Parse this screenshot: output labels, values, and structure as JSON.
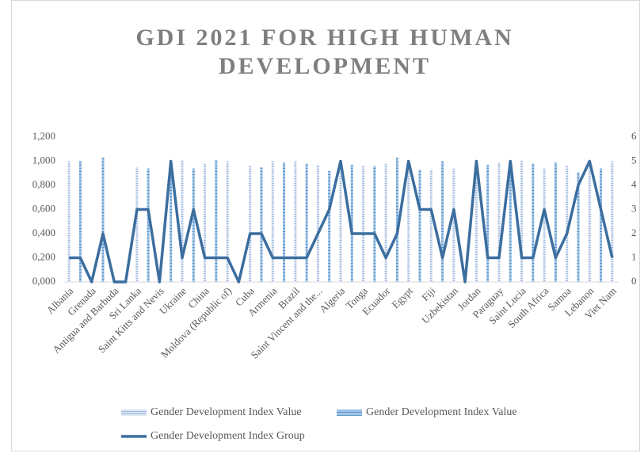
{
  "chart_data": {
    "type": "combo",
    "title": "GDI 2021 FOR HIGH HUMAN DEVELOPMENT",
    "categories": [
      "Albania",
      null,
      "Grenada",
      null,
      "Antigua and Barbuda",
      null,
      "Sri Lanka",
      null,
      "Saint Kitts and Nevis",
      null,
      "Ukraine",
      null,
      "China",
      null,
      "Moldova (Republic of)",
      null,
      "Cuba",
      null,
      "Armenia",
      null,
      "Brazil",
      null,
      "Saint Vincent and the...",
      null,
      "Algeria",
      null,
      "Tonga",
      null,
      "Ecuador",
      null,
      "Egypt",
      null,
      "Fiji",
      null,
      "Uzbekistan",
      null,
      "Jordan",
      null,
      "Paraguay",
      null,
      "Saint Lucia",
      null,
      "South Africa",
      null,
      "Samoa",
      null,
      "Lebanon",
      null,
      "Viet Nam"
    ],
    "series": [
      {
        "name": "Gender Development Index Value",
        "type": "bar",
        "color": "#b4c7e7",
        "values": [
          1.0,
          null,
          null,
          null,
          null,
          null,
          0.95,
          null,
          null,
          null,
          1.01,
          null,
          0.98,
          null,
          1.0,
          null,
          0.96,
          null,
          1.0,
          null,
          1.0,
          null,
          0.97,
          null,
          1.0,
          null,
          0.96,
          null,
          0.98,
          null,
          1.0,
          null,
          0.93,
          null,
          0.94,
          null,
          1.0,
          null,
          0.99,
          null,
          1.01,
          null,
          0.94,
          null,
          0.96,
          null,
          0.98,
          null,
          1.0
        ]
      },
      {
        "name": "Gender Development Index Value",
        "type": "bar",
        "color": "#9dc3e6",
        "values": [
          null,
          1.0,
          null,
          1.03,
          null,
          null,
          null,
          0.94,
          null,
          1.0,
          null,
          0.94,
          null,
          1.01,
          null,
          null,
          null,
          0.95,
          null,
          0.99,
          null,
          0.98,
          null,
          0.92,
          null,
          0.97,
          null,
          0.96,
          null,
          1.03,
          null,
          0.93,
          null,
          1.0,
          null,
          null,
          null,
          0.97,
          null,
          1.0,
          null,
          0.98,
          null,
          0.99,
          null,
          0.91,
          null,
          0.94,
          null
        ]
      },
      {
        "name": "Gender Development Index Group",
        "type": "line",
        "axis": "y2",
        "color": "#3c6e9f",
        "values": [
          1,
          1,
          0,
          2,
          0,
          0,
          3,
          3,
          0,
          5,
          1,
          3,
          1,
          1,
          1,
          0,
          2,
          2,
          1,
          1,
          1,
          1,
          2,
          3,
          5,
          2,
          2,
          2,
          1,
          2,
          5,
          3,
          3,
          1,
          3,
          0,
          5,
          1,
          1,
          5,
          1,
          1,
          3,
          1,
          2,
          4,
          5,
          3,
          1
        ]
      }
    ],
    "ylim": [
      0,
      1.2
    ],
    "yticks": [
      {
        "value": 0,
        "label": "0,000"
      },
      {
        "value": 0.2,
        "label": "0,200"
      },
      {
        "value": 0.4,
        "label": "0,400"
      },
      {
        "value": 0.6,
        "label": "0,600"
      },
      {
        "value": 0.8,
        "label": "0,800"
      },
      {
        "value": 1.0,
        "label": "1,000"
      },
      {
        "value": 1.2,
        "label": "1,200"
      }
    ],
    "y2lim": [
      0,
      6
    ],
    "y2ticks": [
      0,
      1,
      2,
      3,
      4,
      5,
      6
    ],
    "grid": false
  }
}
